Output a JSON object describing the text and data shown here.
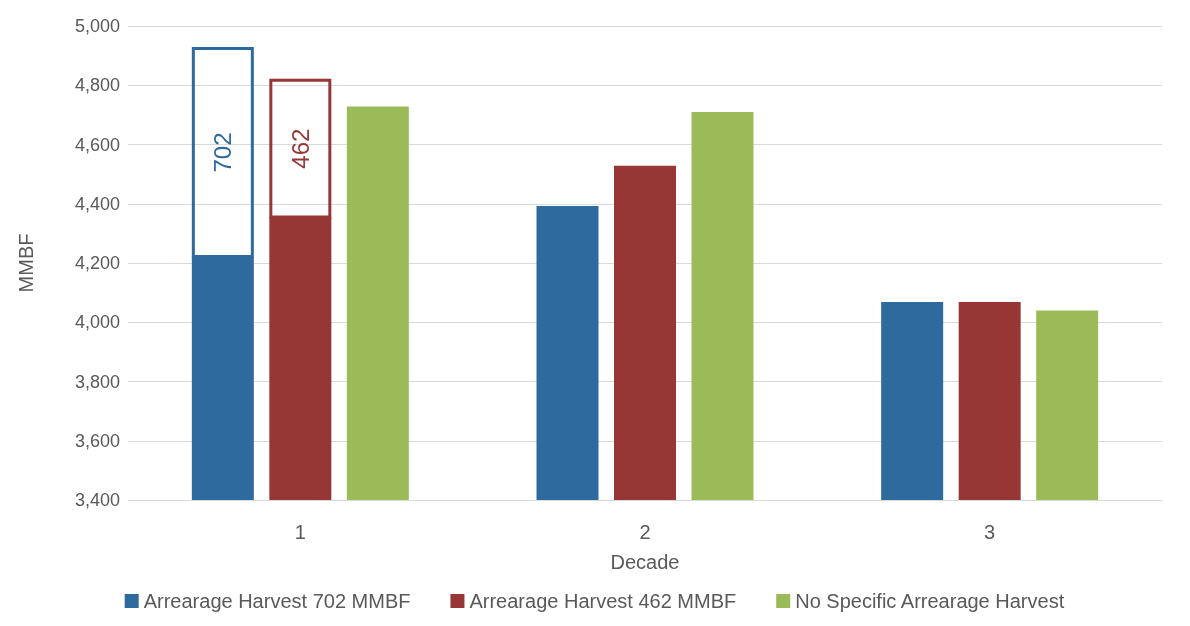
{
  "chart_data": {
    "type": "bar",
    "xlabel": "Decade",
    "ylabel": "MMBF",
    "categories": [
      "1",
      "2",
      "3"
    ],
    "series": [
      {
        "name": "Arrearage Harvest 702 MMBF",
        "color": "#2e6a9e",
        "values": [
          4222,
          4392,
          4068
        ]
      },
      {
        "color": "#2e6a9e",
        "base": [
          4222,
          null,
          null
        ],
        "values": [
          702,
          null,
          null
        ],
        "value_labels": [
          "702",
          null,
          null
        ]
      },
      {
        "name": "Arrearage Harvest 462 MMBF",
        "color": "#973735",
        "values": [
          4355,
          4528,
          4068
        ]
      },
      {
        "color": "#973735",
        "base": [
          4355,
          null,
          null
        ],
        "values": [
          462,
          null,
          null
        ],
        "value_labels": [
          "462",
          null,
          null
        ]
      },
      {
        "name": "No Specific Arrearage Harvest",
        "color": "#9bbb59",
        "values": [
          4728,
          4710,
          4040
        ]
      }
    ],
    "ylim": [
      3400,
      5000
    ],
    "yticks": [
      {
        "value": 3400,
        "label": "3,400"
      },
      {
        "value": 3600,
        "label": "3,600"
      },
      {
        "value": 3800,
        "label": "3,800"
      },
      {
        "value": 4000,
        "label": "4,000"
      },
      {
        "value": 4200,
        "label": "4,200"
      },
      {
        "value": 4400,
        "label": "4,400"
      },
      {
        "value": 4600,
        "label": "4,600"
      },
      {
        "value": 4800,
        "label": "4,800"
      },
      {
        "value": 5000,
        "label": "5,000"
      }
    ],
    "grid": "y",
    "legend": "bottom"
  }
}
